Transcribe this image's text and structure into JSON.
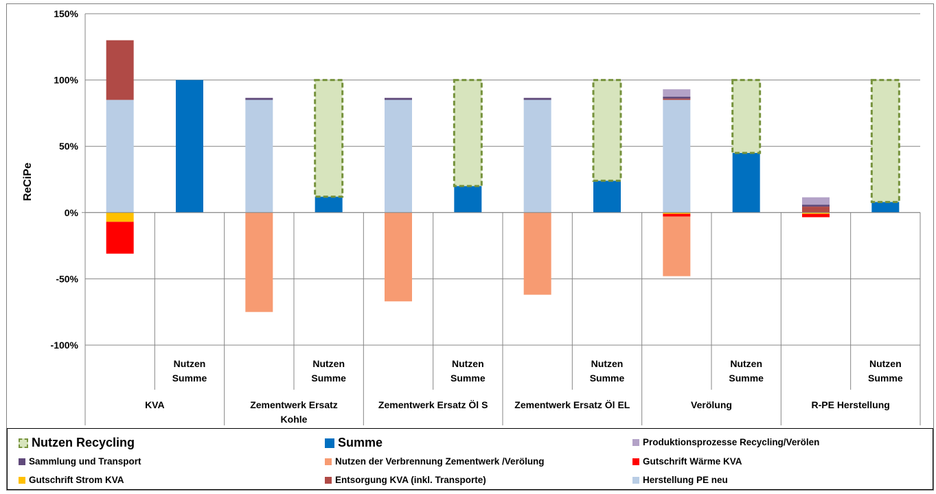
{
  "chart_data": {
    "type": "bar",
    "stacked": true,
    "ylabel": "ReCiPe",
    "ylim": [
      -100,
      150
    ],
    "yticks": [
      "-100%",
      "-50%",
      "0%",
      "50%",
      "100%",
      "150%"
    ],
    "ytick_values": [
      -100,
      -50,
      0,
      50,
      100,
      150
    ],
    "grid": true,
    "legend_position": "bottom",
    "groups": [
      "KVA",
      "Zementwerk Ersatz Kohle",
      "Zementwerk Ersatz Öl S",
      "Zementwerk Ersatz Öl EL",
      "Verölung",
      "R-PE Herstellung"
    ],
    "subcategory_label": "Nutzen Summe",
    "bars": [
      {
        "group": "KVA",
        "kind": "components",
        "values": {
          "Herstellung PE neu": 85,
          "Entsorgung KVA (inkl. Transporte)": 45,
          "Gutschrift Strom KVA": -7,
          "Gutschrift Wärme KVA": -24
        }
      },
      {
        "group": "KVA",
        "kind": "summe",
        "values": {
          "Summe": 100
        }
      },
      {
        "group": "Zementwerk Ersatz Kohle",
        "kind": "components",
        "values": {
          "Herstellung PE neu": 85,
          "Sammlung und Transport": 1.5,
          "Nutzen der Verbrennung Zementwerk /Verölung": -75
        }
      },
      {
        "group": "Zementwerk Ersatz Kohle",
        "kind": "summe",
        "values": {
          "Summe": 12,
          "Nutzen Recycling": 88
        }
      },
      {
        "group": "Zementwerk Ersatz Öl S",
        "kind": "components",
        "values": {
          "Herstellung PE neu": 85,
          "Sammlung und Transport": 1.5,
          "Nutzen der Verbrennung Zementwerk /Verölung": -67
        }
      },
      {
        "group": "Zementwerk Ersatz Öl S",
        "kind": "summe",
        "values": {
          "Summe": 20,
          "Nutzen Recycling": 80
        }
      },
      {
        "group": "Zementwerk Ersatz Öl EL",
        "kind": "components",
        "values": {
          "Herstellung PE neu": 85,
          "Sammlung und Transport": 1.5,
          "Nutzen der Verbrennung Zementwerk /Verölung": -62
        }
      },
      {
        "group": "Zementwerk Ersatz Öl EL",
        "kind": "summe",
        "values": {
          "Summe": 24,
          "Nutzen Recycling": 76
        }
      },
      {
        "group": "Verölung",
        "kind": "components",
        "values": {
          "Herstellung PE neu": 85,
          "Entsorgung KVA (inkl. Transporte)": 1,
          "Sammlung und Transport": 1.5,
          "Produktionsprozesse Recycling/Verölen": 5.5,
          "Gutschrift Strom KVA": -1,
          "Gutschrift Wärme KVA": -2,
          "Nutzen der Verbrennung Zementwerk /Verölung": -45
        }
      },
      {
        "group": "Verölung",
        "kind": "summe",
        "values": {
          "Summe": 45,
          "Nutzen Recycling": 55
        }
      },
      {
        "group": "R-PE Herstellung",
        "kind": "components",
        "values": {
          "Entsorgung KVA (inkl. Transporte)": 4.5,
          "Sammlung und Transport": 1.5,
          "Produktionsprozesse Recycling/Verölen": 5.5,
          "Gutschrift Strom KVA": -1,
          "Gutschrift Wärme KVA": -2.5
        }
      },
      {
        "group": "R-PE Herstellung",
        "kind": "summe",
        "values": {
          "Summe": 8,
          "Nutzen Recycling": 92
        }
      }
    ],
    "series": [
      {
        "name": "Nutzen Recycling",
        "color": "#d7e4bd",
        "border": "#76923c"
      },
      {
        "name": "Summe",
        "color": "#0070c0"
      },
      {
        "name": "Produktionsprozesse Recycling/Verölen",
        "color": "#b3a2c7"
      },
      {
        "name": "Sammlung und Transport",
        "color": "#604a7b"
      },
      {
        "name": "Nutzen der Verbrennung Zementwerk /Verölung",
        "color": "#f79b72"
      },
      {
        "name": "Gutschrift Wärme KVA",
        "color": "#ff0000"
      },
      {
        "name": "Gutschrift Strom KVA",
        "color": "#ffc000"
      },
      {
        "name": "Entsorgung KVA (inkl. Transporte)",
        "color": "#b04a46"
      },
      {
        "name": "Herstellung PE neu",
        "color": "#b9cde5"
      }
    ]
  },
  "group_labels": [
    {
      "line1": "KVA",
      "line2": ""
    },
    {
      "line1": "Zementwerk Ersatz",
      "line2": "Kohle"
    },
    {
      "line1": "Zementwerk Ersatz Öl S",
      "line2": ""
    },
    {
      "line1": "Zementwerk Ersatz Öl EL",
      "line2": ""
    },
    {
      "line1": "Verölung",
      "line2": ""
    },
    {
      "line1": "R-PE Herstellung",
      "line2": ""
    }
  ],
  "sublabel": {
    "line1": "Nutzen",
    "line2": "Summe"
  },
  "legend": [
    "Nutzen Recycling",
    "Summe",
    "Produktionsprozesse Recycling/Verölen",
    "Sammlung und Transport",
    "Nutzen der Verbrennung Zementwerk /Verölung",
    "Gutschrift Wärme KVA",
    "Gutschrift Strom KVA",
    "Entsorgung KVA (inkl. Transporte)",
    "Herstellung PE neu"
  ]
}
